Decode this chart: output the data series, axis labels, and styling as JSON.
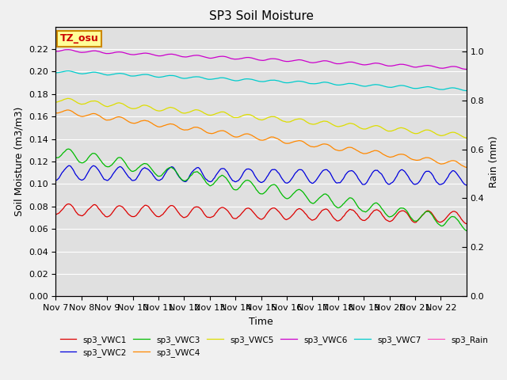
{
  "title": "SP3 Soil Moisture",
  "xlabel": "Time",
  "ylabel_left": "Soil Moisture (m3/m3)",
  "ylabel_right": "Rain (mm)",
  "ylim_left": [
    0.0,
    0.24
  ],
  "ylim_right": [
    0.0,
    1.1
  ],
  "yticks_left": [
    0.0,
    0.02,
    0.04,
    0.06,
    0.08,
    0.1,
    0.12,
    0.14,
    0.16,
    0.18,
    0.2,
    0.22
  ],
  "yticks_right": [
    0.0,
    0.2,
    0.4,
    0.6,
    0.8,
    1.0
  ],
  "xtick_labels": [
    "Nov 7",
    "Nov 8",
    "Nov 9",
    "Nov 10",
    "Nov 11",
    "Nov 12",
    "Nov 13",
    "Nov 14",
    "Nov 15",
    "Nov 16",
    "Nov 17",
    "Nov 18",
    "Nov 19",
    "Nov 20",
    "Nov 21",
    "Nov 22"
  ],
  "bg_color": "#e0e0e0",
  "fig_color": "#f0f0f0",
  "series": {
    "sp3_VWC1": {
      "color": "#dd0000",
      "mean": 0.077,
      "amp": 0.005,
      "trend": -0.0004
    },
    "sp3_VWC2": {
      "color": "#0000dd",
      "mean": 0.11,
      "amp": 0.006,
      "trend": -0.0003
    },
    "sp3_VWC3": {
      "color": "#00bb00",
      "mean": 0.128,
      "amp": 0.005,
      "trend": -0.004
    },
    "sp3_VWC4": {
      "color": "#ff8800",
      "mean": 0.165,
      "amp": 0.002,
      "trend": -0.003
    },
    "sp3_VWC5": {
      "color": "#dddd00",
      "mean": 0.175,
      "amp": 0.002,
      "trend": -0.002
    },
    "sp3_VWC6": {
      "color": "#cc00cc",
      "mean": 0.219,
      "amp": 0.001,
      "trend": -0.001
    },
    "sp3_VWC7": {
      "color": "#00cccc",
      "mean": 0.2,
      "amp": 0.001,
      "trend": -0.001
    },
    "sp3_Rain": {
      "color": "#ff44bb",
      "mean": 0.0,
      "amp": 0.0,
      "trend": 0.0
    }
  },
  "annotation_text": "TZ_osu",
  "annotation_color": "#cc0000",
  "annotation_bg": "#ffff99",
  "annotation_border": "#cc8800"
}
